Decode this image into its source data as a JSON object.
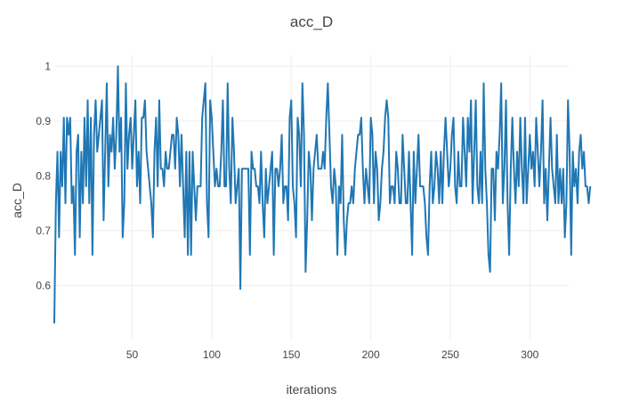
{
  "chart_data": {
    "type": "line",
    "title": "acc_D",
    "xlabel": "iterations",
    "ylabel": "acc_D",
    "xlim": [
      1,
      325
    ],
    "ylim": [
      0.5,
      1.02
    ],
    "x_ticks": [
      50,
      100,
      150,
      200,
      250,
      300
    ],
    "y_ticks": [
      0.6,
      0.7,
      0.8,
      0.9,
      1
    ],
    "grid": true,
    "legend": "none",
    "series": [
      {
        "color": "#1f77b4",
        "x_start": 1,
        "x_step": 1,
        "values": [
          0.531,
          0.75,
          0.844,
          0.688,
          0.844,
          0.781,
          0.906,
          0.75,
          0.906,
          0.875,
          0.906,
          0.75,
          0.781,
          0.656,
          0.844,
          0.875,
          0.688,
          0.844,
          0.75,
          0.906,
          0.781,
          0.938,
          0.75,
          0.906,
          0.656,
          0.875,
          0.938,
          0.844,
          0.875,
          0.906,
          0.938,
          0.719,
          0.844,
          0.969,
          0.781,
          0.875,
          0.844,
          0.906,
          0.813,
          0.875,
          1.0,
          0.844,
          0.906,
          0.688,
          0.75,
          0.969,
          0.813,
          0.875,
          0.906,
          0.813,
          0.875,
          0.938,
          0.781,
          0.844,
          0.75,
          0.906,
          0.906,
          0.938,
          0.844,
          0.813,
          0.781,
          0.75,
          0.688,
          0.844,
          0.906,
          0.781,
          0.938,
          0.813,
          0.813,
          0.781,
          0.844,
          0.813,
          0.813,
          0.844,
          0.875,
          0.875,
          0.813,
          0.906,
          0.875,
          0.781,
          0.875,
          0.781,
          0.688,
          0.844,
          0.656,
          0.844,
          0.656,
          0.844,
          0.781,
          0.719,
          0.781,
          0.781,
          0.781,
          0.906,
          0.938,
          0.969,
          0.75,
          0.688,
          0.938,
          0.906,
          0.844,
          0.781,
          0.813,
          0.781,
          0.781,
          0.844,
          0.938,
          0.781,
          0.781,
          0.969,
          0.813,
          0.75,
          0.906,
          0.844,
          0.75,
          0.781,
          0.813,
          0.594,
          0.813,
          0.813,
          0.813,
          0.813,
          0.813,
          0.656,
          0.844,
          0.813,
          0.813,
          0.781,
          0.781,
          0.75,
          0.844,
          0.75,
          0.688,
          0.813,
          0.75,
          0.781,
          0.813,
          0.844,
          0.656,
          0.813,
          0.813,
          0.781,
          0.813,
          0.875,
          0.75,
          0.781,
          0.781,
          0.719,
          0.906,
          0.938,
          0.781,
          0.75,
          0.688,
          0.906,
          0.875,
          0.781,
          0.969,
          0.875,
          0.625,
          0.719,
          0.844,
          0.813,
          0.719,
          0.813,
          0.844,
          0.875,
          0.813,
          0.813,
          0.813,
          0.844,
          0.813,
          0.906,
          0.969,
          0.875,
          0.781,
          0.75,
          0.813,
          0.781,
          0.656,
          0.781,
          0.75,
          0.875,
          0.719,
          0.656,
          0.719,
          0.75,
          0.75,
          0.781,
          0.75,
          0.813,
          0.844,
          0.875,
          0.875,
          0.906,
          0.813,
          0.75,
          0.813,
          0.781,
          0.75,
          0.906,
          0.875,
          0.75,
          0.844,
          0.813,
          0.719,
          0.75,
          0.813,
          0.844,
          0.906,
          0.938,
          0.906,
          0.75,
          0.781,
          0.781,
          0.75,
          0.844,
          0.813,
          0.75,
          0.75,
          0.875,
          0.813,
          0.75,
          0.75,
          0.844,
          0.75,
          0.656,
          0.844,
          0.75,
          0.813,
          0.875,
          0.781,
          0.781,
          0.781,
          0.75,
          0.688,
          0.656,
          0.781,
          0.844,
          0.75,
          0.781,
          0.844,
          0.813,
          0.75,
          0.844,
          0.75,
          0.844,
          0.906,
          0.844,
          0.781,
          0.813,
          0.875,
          0.906,
          0.781,
          0.75,
          0.844,
          0.781,
          0.781,
          0.906,
          0.844,
          0.781,
          0.906,
          0.844,
          0.938,
          0.75,
          0.844,
          0.938,
          0.781,
          0.75,
          0.844,
          0.75,
          0.969,
          0.813,
          0.75,
          0.656,
          0.625,
          0.813,
          0.813,
          0.719,
          0.844,
          0.813,
          0.875,
          0.969,
          0.75,
          0.813,
          0.938,
          0.75,
          0.656,
          0.813,
          0.906,
          0.813,
          0.75,
          0.844,
          0.781,
          0.906,
          0.813,
          0.75,
          0.906,
          0.75,
          0.813,
          0.875,
          0.813,
          0.844,
          0.781,
          0.906,
          0.844,
          0.781,
          0.844,
          0.938,
          0.75,
          0.813,
          0.719,
          0.813,
          0.906,
          0.813,
          0.781,
          0.75,
          0.875,
          0.75,
          0.813,
          0.75,
          0.813,
          0.688,
          0.75,
          0.938,
          0.844,
          0.656,
          0.844,
          0.781,
          0.813,
          0.75,
          0.844,
          0.875,
          0.813,
          0.844,
          0.781,
          0.781,
          0.75,
          0.781
        ]
      }
    ]
  }
}
